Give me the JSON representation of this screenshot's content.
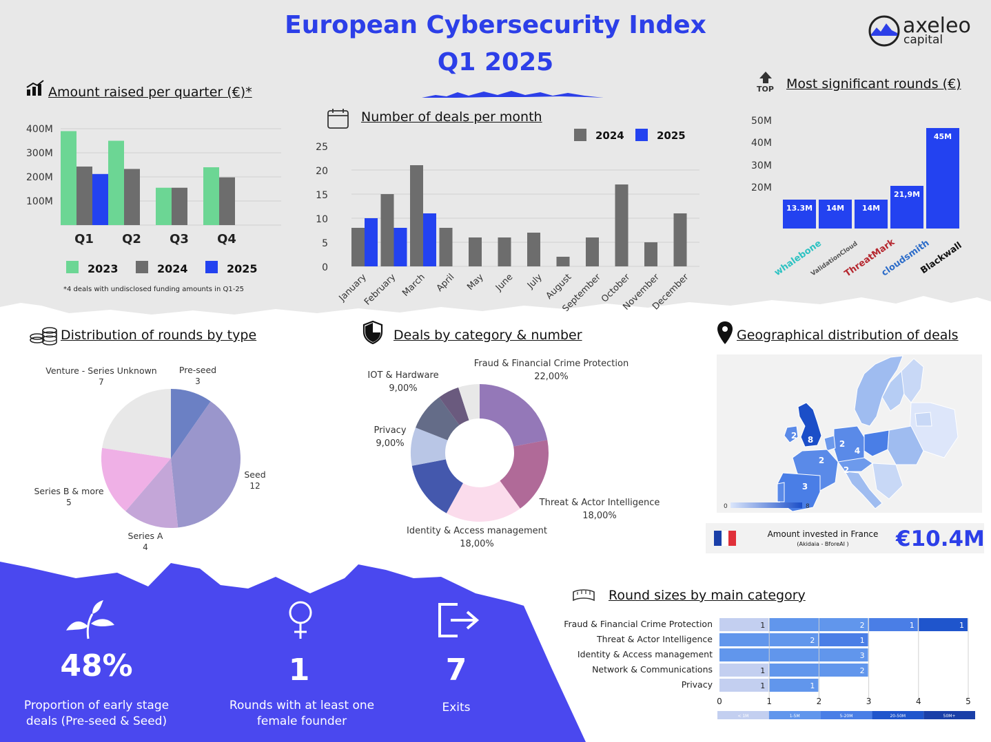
{
  "header": {
    "title_line1": "European Cybersecurity Index",
    "title_line2": "Q1 2025",
    "logo_main": "axeleo",
    "logo_sub": "capital"
  },
  "colors": {
    "accent": "#2c3fe8",
    "bar_2023": "#6cd694",
    "bar_2024": "#6d6d6d",
    "bar_2025": "#2342f0",
    "panel_bg": "#e8e8e8",
    "purple_bg": "#4a48ef"
  },
  "sections": {
    "quarter": "Amount raised per quarter (€)*",
    "monthly": "Number of deals per month",
    "top_rounds": "Most significant rounds (€)",
    "top_icon_label": "TOP",
    "round_types": "Distribution of rounds by type",
    "categories": "Deals by category & number",
    "geo": "Geographical distribution of deals",
    "round_sizes": "Round sizes by main category"
  },
  "chart_data": [
    {
      "id": "quarter",
      "type": "bar",
      "categories": [
        "Q1",
        "Q2",
        "Q3",
        "Q4"
      ],
      "y_ticks": [
        "400M",
        "300M",
        "200M",
        "100M"
      ],
      "ylim": [
        0,
        400
      ],
      "series": [
        {
          "name": "2023",
          "color": "#6cd694",
          "values": [
            390,
            350,
            155,
            240
          ]
        },
        {
          "name": "2024",
          "color": "#6d6d6d",
          "values": [
            243,
            233,
            155,
            198
          ]
        },
        {
          "name": "2025",
          "color": "#2342f0",
          "values": [
            212,
            null,
            null,
            null
          ]
        }
      ],
      "footnote": "*4 deals with undisclosed funding amounts in Q1-25"
    },
    {
      "id": "monthly",
      "type": "bar",
      "categories": [
        "January",
        "February",
        "March",
        "April",
        "May",
        "June",
        "July",
        "August",
        "September",
        "October",
        "November",
        "December"
      ],
      "y_ticks": [
        "25",
        "20",
        "15",
        "10",
        "5",
        "0"
      ],
      "ylim": [
        0,
        25
      ],
      "series": [
        {
          "name": "2024",
          "color": "#6d6d6d",
          "values": [
            8,
            15,
            21,
            8,
            6,
            6,
            7,
            2,
            6,
            17,
            5,
            11
          ]
        },
        {
          "name": "2025",
          "color": "#2342f0",
          "values": [
            10,
            8,
            11,
            null,
            null,
            null,
            null,
            null,
            null,
            null,
            null,
            null
          ]
        }
      ]
    },
    {
      "id": "top_rounds",
      "type": "bar",
      "categories": [
        "whalebone",
        "ValidationCloud",
        "ThreatMark",
        "cloudsmith",
        "Blackwall"
      ],
      "values": [
        13.3,
        14,
        14,
        21.9,
        45
      ],
      "data_labels": [
        "13.3M",
        "14M",
        "14M",
        "21,9M",
        "45M"
      ],
      "y_ticks": [
        "50M",
        "40M",
        "30M",
        "20M"
      ],
      "color": "#2342f0"
    },
    {
      "id": "round_types",
      "type": "pie",
      "slices": [
        {
          "label": "Pre-seed",
          "value": 3,
          "color": "#6b80c4"
        },
        {
          "label": "Seed",
          "value": 12,
          "color": "#9a96cc"
        },
        {
          "label": "Series A",
          "value": 4,
          "color": "#c4a6d8"
        },
        {
          "label": "Series B & more",
          "value": 5,
          "color": "#efb0e6"
        },
        {
          "label": "Venture - Series Unknown",
          "value": 7,
          "color": "#e8e8e8"
        }
      ]
    },
    {
      "id": "categories",
      "type": "pie",
      "donut": true,
      "slices": [
        {
          "label": "Fraud & Financial Crime Protection",
          "pct": "22,00%",
          "value": 22,
          "color": "#9478b8"
        },
        {
          "label": "Threat & Actor Intelligence",
          "pct": "18,00%",
          "value": 18,
          "color": "#b06a98"
        },
        {
          "label": "Identity & Access management",
          "pct": "18,00%",
          "value": 18,
          "color": "#fbdcec"
        },
        {
          "label": "",
          "pct": "",
          "value": 14,
          "color": "#4458ad"
        },
        {
          "label": "Privacy",
          "pct": "9,00%",
          "value": 9,
          "color": "#b9c6e6"
        },
        {
          "label": "IOT & Hardware",
          "pct": "9,00%",
          "value": 9,
          "color": "#646c88"
        },
        {
          "label": "",
          "pct": "",
          "value": 5,
          "color": "#6a5a7e"
        },
        {
          "label": "",
          "pct": "",
          "value": 5,
          "color": "#e8e8e8"
        }
      ]
    },
    {
      "id": "round_sizes",
      "type": "bar",
      "orientation": "horizontal",
      "stacked": true,
      "categories": [
        "Fraud & Financial Crime Protection",
        "Threat & Actor Intelligence",
        "Identity & Access management",
        "Network & Communications",
        "Privacy"
      ],
      "x_ticks": [
        "0",
        "1",
        "2",
        "3",
        "4",
        "5"
      ],
      "xlim": [
        0,
        5
      ],
      "series": [
        {
          "name": "< 1M",
          "color": "#c3cff0",
          "values": [
            1,
            0,
            0,
            1,
            1
          ]
        },
        {
          "name": "1-5M",
          "color": "#6196ec",
          "values": [
            2,
            2,
            3,
            2,
            1
          ]
        },
        {
          "name": "5-20M",
          "color": "#4a7ee6",
          "values": [
            1,
            1,
            0,
            0,
            0
          ]
        },
        {
          "name": "20-50M",
          "color": "#1f55cc",
          "values": [
            1,
            0,
            0,
            0,
            0
          ]
        },
        {
          "name": "50M+",
          "color": "#1a3fa8",
          "values": [
            0,
            0,
            0,
            0,
            0
          ]
        }
      ]
    }
  ],
  "geo": {
    "labels": [
      {
        "text": "2"
      },
      {
        "text": "8"
      },
      {
        "text": "2"
      },
      {
        "text": "4"
      },
      {
        "text": "2"
      },
      {
        "text": "2"
      },
      {
        "text": "3"
      }
    ],
    "scale_min": "0",
    "scale_max": "8",
    "france_label": "Amount invested in France",
    "france_sub": "(Akidaia - BforeAI )",
    "france_value": "€10.4M"
  },
  "stats": [
    {
      "value": "48%",
      "label": "Proportion of early stage deals (Pre-seed & Seed)",
      "icon": "sprout-icon"
    },
    {
      "value": "1",
      "label": "Rounds with at least one female founder",
      "icon": "female-icon"
    },
    {
      "value": "7",
      "label": "Exits",
      "icon": "exit-icon"
    }
  ]
}
